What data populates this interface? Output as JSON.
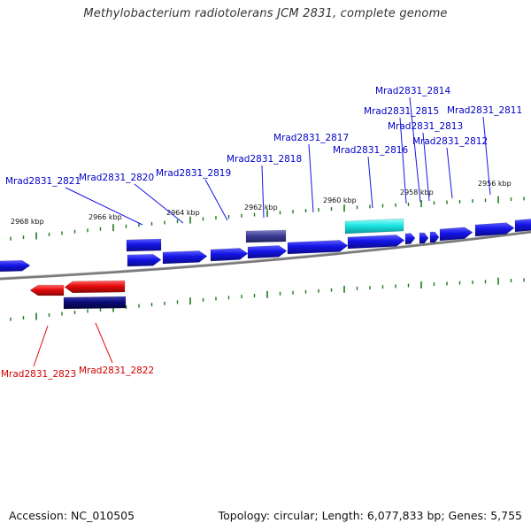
{
  "title": "Methylobacterium radiotolerans JCM 2831, complete genome",
  "footer": {
    "accession": "Accession: NC_010505",
    "topology": "Topology: circular; Length: 6,077,833 bp; Genes: 5,755"
  },
  "scale_labels": [
    "2968 kbp",
    "2966 kbp",
    "2964 kbp",
    "2962 kbp",
    "2960 kbp",
    "2958 kbp",
    "2956 kbp"
  ],
  "forward_genes": [
    "Mrad2831_2821",
    "Mrad2831_2820",
    "Mrad2831_2819",
    "Mrad2831_2818",
    "Mrad2831_2817",
    "Mrad2831_2816",
    "Mrad2831_2815",
    "Mrad2831_2814",
    "Mrad2831_2813",
    "Mrad2831_2812",
    "Mrad2831_2811"
  ],
  "reverse_genes": [
    "Mrad2831_2823",
    "Mrad2831_2822"
  ],
  "colors": {
    "forward": "#1414e6",
    "reverse": "#e60a0a",
    "highlight_cyan": "#1ee6e6",
    "dark_navy": "#0a0a78",
    "slate": "#3c3c96",
    "tick": "#1e781e",
    "backbone": "#7a7a7a"
  }
}
